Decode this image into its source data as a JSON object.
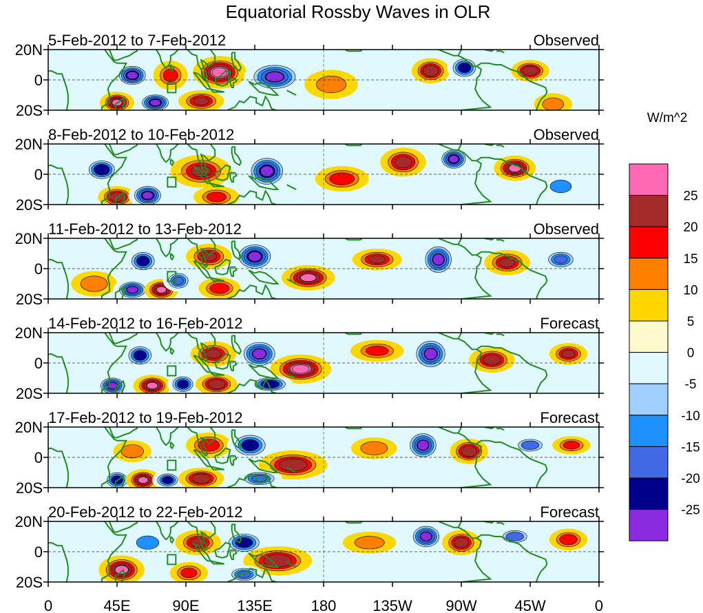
{
  "chart_data": {
    "type": "heatmap",
    "title": "Equatorial Rossby Waves in OLR",
    "units": "W/m^2",
    "x_ticks": [
      "0",
      "45E",
      "90E",
      "135E",
      "180",
      "135W",
      "90W",
      "45W",
      "0"
    ],
    "y_ticks": [
      "20N",
      "0",
      "20S"
    ],
    "xlim": [
      0,
      360
    ],
    "ylim": [
      -20,
      20
    ],
    "colorbar": {
      "colors": [
        "#ff69b4",
        "#a52a2a",
        "#ff0000",
        "#ff7f00",
        "#ffd700",
        "#fffacd",
        "#e0f8ff",
        "#a0d0ff",
        "#1e90ff",
        "#4169e1",
        "#00008b",
        "#8a2be2"
      ],
      "labels": [
        "25",
        "20",
        "15",
        "10",
        "5",
        "0",
        "-5",
        "-10",
        "-15",
        "-20",
        "-25"
      ]
    },
    "panels": [
      {
        "period": "5-Feb-2012 to 7-Feb-2012",
        "status": "Observed",
        "features": [
          {
            "lon": 55,
            "lat": 3,
            "rx": 10,
            "ry": 7,
            "amp": -28
          },
          {
            "lon": 45,
            "lat": -15,
            "rx": 9,
            "ry": 6,
            "amp": 26
          },
          {
            "lon": 70,
            "lat": -15,
            "rx": 10,
            "ry": 6,
            "amp": -28
          },
          {
            "lon": 80,
            "lat": 3,
            "rx": 9,
            "ry": 8,
            "amp": 16
          },
          {
            "lon": 112,
            "lat": 5,
            "rx": 14,
            "ry": 9,
            "amp": 28
          },
          {
            "lon": 100,
            "lat": -14,
            "rx": 12,
            "ry": 6,
            "amp": 20
          },
          {
            "lon": 148,
            "lat": 2,
            "rx": 16,
            "ry": 9,
            "amp": -26
          },
          {
            "lon": 185,
            "lat": -3,
            "rx": 14,
            "ry": 8,
            "amp": 12
          },
          {
            "lon": 250,
            "lat": 6,
            "rx": 10,
            "ry": 7,
            "amp": 24
          },
          {
            "lon": 272,
            "lat": 8,
            "rx": 9,
            "ry": 7,
            "amp": -22
          },
          {
            "lon": 315,
            "lat": 6,
            "rx": 10,
            "ry": 6,
            "amp": 24
          },
          {
            "lon": 330,
            "lat": -16,
            "rx": 10,
            "ry": 6,
            "amp": 12
          }
        ]
      },
      {
        "period": "8-Feb-2012 to 10-Feb-2012",
        "status": "Observed",
        "features": [
          {
            "lon": 35,
            "lat": 3,
            "rx": 10,
            "ry": 7,
            "amp": -24
          },
          {
            "lon": 45,
            "lat": -15,
            "rx": 10,
            "ry": 6,
            "amp": 24
          },
          {
            "lon": 65,
            "lat": -14,
            "rx": 10,
            "ry": 7,
            "amp": -28
          },
          {
            "lon": 100,
            "lat": 2,
            "rx": 16,
            "ry": 9,
            "amp": 20
          },
          {
            "lon": 143,
            "lat": 2,
            "rx": 12,
            "ry": 10,
            "amp": -28
          },
          {
            "lon": 110,
            "lat": -15,
            "rx": 12,
            "ry": 6,
            "amp": 16
          },
          {
            "lon": 192,
            "lat": -3,
            "rx": 14,
            "ry": 7,
            "amp": 18
          },
          {
            "lon": 232,
            "lat": 8,
            "rx": 12,
            "ry": 8,
            "amp": 22
          },
          {
            "lon": 265,
            "lat": 10,
            "rx": 9,
            "ry": 7,
            "amp": -28
          },
          {
            "lon": 305,
            "lat": 4,
            "rx": 11,
            "ry": 7,
            "amp": 26
          },
          {
            "lon": 335,
            "lat": -8,
            "rx": 10,
            "ry": 6,
            "amp": -12
          }
        ]
      },
      {
        "period": "11-Feb-2012 to 13-Feb-2012",
        "status": "Observed",
        "features": [
          {
            "lon": 30,
            "lat": -10,
            "rx": 12,
            "ry": 7,
            "amp": 14
          },
          {
            "lon": 62,
            "lat": 5,
            "rx": 9,
            "ry": 7,
            "amp": -22
          },
          {
            "lon": 55,
            "lat": -14,
            "rx": 10,
            "ry": 6,
            "amp": -26
          },
          {
            "lon": 74,
            "lat": -14,
            "rx": 9,
            "ry": 6,
            "amp": 26
          },
          {
            "lon": 85,
            "lat": -8,
            "rx": 8,
            "ry": 6,
            "amp": -20
          },
          {
            "lon": 105,
            "lat": 8,
            "rx": 12,
            "ry": 7,
            "amp": 20
          },
          {
            "lon": 135,
            "lat": 8,
            "rx": 12,
            "ry": 9,
            "amp": -28
          },
          {
            "lon": 112,
            "lat": -13,
            "rx": 11,
            "ry": 6,
            "amp": 18
          },
          {
            "lon": 170,
            "lat": -6,
            "rx": 14,
            "ry": 7,
            "amp": 26
          },
          {
            "lon": 215,
            "lat": 6,
            "rx": 13,
            "ry": 6,
            "amp": 20
          },
          {
            "lon": 255,
            "lat": 6,
            "rx": 10,
            "ry": 10,
            "amp": -26
          },
          {
            "lon": 300,
            "lat": 4,
            "rx": 12,
            "ry": 7,
            "amp": 20
          },
          {
            "lon": 335,
            "lat": 6,
            "rx": 10,
            "ry": 6,
            "amp": -20
          }
        ]
      },
      {
        "period": "14-Feb-2012 to 16-Feb-2012",
        "status": "Forecast",
        "features": [
          {
            "lon": 60,
            "lat": 5,
            "rx": 9,
            "ry": 7,
            "amp": -22
          },
          {
            "lon": 42,
            "lat": -15,
            "rx": 9,
            "ry": 6,
            "amp": -26
          },
          {
            "lon": 68,
            "lat": -15,
            "rx": 10,
            "ry": 6,
            "amp": 26
          },
          {
            "lon": 88,
            "lat": -14,
            "rx": 8,
            "ry": 6,
            "amp": -22
          },
          {
            "lon": 108,
            "lat": 6,
            "rx": 12,
            "ry": 7,
            "amp": 20
          },
          {
            "lon": 138,
            "lat": 6,
            "rx": 12,
            "ry": 9,
            "amp": -26
          },
          {
            "lon": 110,
            "lat": -14,
            "rx": 11,
            "ry": 6,
            "amp": 24
          },
          {
            "lon": 165,
            "lat": -4,
            "rx": 16,
            "ry": 8,
            "amp": 28
          },
          {
            "lon": 145,
            "lat": -14,
            "rx": 12,
            "ry": 5,
            "amp": -24
          },
          {
            "lon": 215,
            "lat": 8,
            "rx": 14,
            "ry": 6,
            "amp": 16
          },
          {
            "lon": 250,
            "lat": 6,
            "rx": 11,
            "ry": 10,
            "amp": -26
          },
          {
            "lon": 290,
            "lat": 2,
            "rx": 12,
            "ry": 7,
            "amp": 22
          },
          {
            "lon": 340,
            "lat": 6,
            "rx": 10,
            "ry": 6,
            "amp": 20
          }
        ]
      },
      {
        "period": "17-Feb-2012 to 19-Feb-2012",
        "status": "Forecast",
        "features": [
          {
            "lon": 55,
            "lat": 4,
            "rx": 10,
            "ry": 6,
            "amp": 14
          },
          {
            "lon": 45,
            "lat": -15,
            "rx": 8,
            "ry": 6,
            "amp": -22
          },
          {
            "lon": 62,
            "lat": -15,
            "rx": 9,
            "ry": 6,
            "amp": 26
          },
          {
            "lon": 78,
            "lat": -15,
            "rx": 8,
            "ry": 5,
            "amp": -22
          },
          {
            "lon": 105,
            "lat": 8,
            "rx": 12,
            "ry": 7,
            "amp": 18
          },
          {
            "lon": 132,
            "lat": 8,
            "rx": 12,
            "ry": 8,
            "amp": -22
          },
          {
            "lon": 100,
            "lat": -14,
            "rx": 12,
            "ry": 6,
            "amp": 24
          },
          {
            "lon": 160,
            "lat": -5,
            "rx": 18,
            "ry": 8,
            "amp": 24
          },
          {
            "lon": 138,
            "lat": -14,
            "rx": 12,
            "ry": 5,
            "amp": -20
          },
          {
            "lon": 213,
            "lat": 6,
            "rx": 12,
            "ry": 6,
            "amp": 14
          },
          {
            "lon": 245,
            "lat": 8,
            "rx": 10,
            "ry": 9,
            "amp": -26
          },
          {
            "lon": 275,
            "lat": 4,
            "rx": 10,
            "ry": 7,
            "amp": 24
          },
          {
            "lon": 315,
            "lat": 8,
            "rx": 10,
            "ry": 5,
            "amp": -18
          },
          {
            "lon": 342,
            "lat": 8,
            "rx": 10,
            "ry": 5,
            "amp": 16
          }
        ]
      },
      {
        "period": "20-Feb-2012 to 22-Feb-2012",
        "status": "Forecast",
        "features": [
          {
            "lon": 48,
            "lat": -12,
            "rx": 12,
            "ry": 8,
            "amp": 26
          },
          {
            "lon": 65,
            "lat": 6,
            "rx": 10,
            "ry": 6,
            "amp": -14
          },
          {
            "lon": 98,
            "lat": 6,
            "rx": 12,
            "ry": 7,
            "amp": 20
          },
          {
            "lon": 92,
            "lat": -14,
            "rx": 10,
            "ry": 6,
            "amp": 16
          },
          {
            "lon": 128,
            "lat": 6,
            "rx": 12,
            "ry": 7,
            "amp": -22
          },
          {
            "lon": 150,
            "lat": -6,
            "rx": 18,
            "ry": 8,
            "amp": 24
          },
          {
            "lon": 128,
            "lat": -15,
            "rx": 10,
            "ry": 5,
            "amp": -20
          },
          {
            "lon": 210,
            "lat": 6,
            "rx": 14,
            "ry": 6,
            "amp": 12
          },
          {
            "lon": 247,
            "lat": 10,
            "rx": 10,
            "ry": 8,
            "amp": -26
          },
          {
            "lon": 270,
            "lat": 6,
            "rx": 10,
            "ry": 7,
            "amp": 22
          },
          {
            "lon": 305,
            "lat": 10,
            "rx": 10,
            "ry": 5,
            "amp": -18
          },
          {
            "lon": 340,
            "lat": 8,
            "rx": 10,
            "ry": 6,
            "amp": 18
          }
        ]
      }
    ]
  }
}
